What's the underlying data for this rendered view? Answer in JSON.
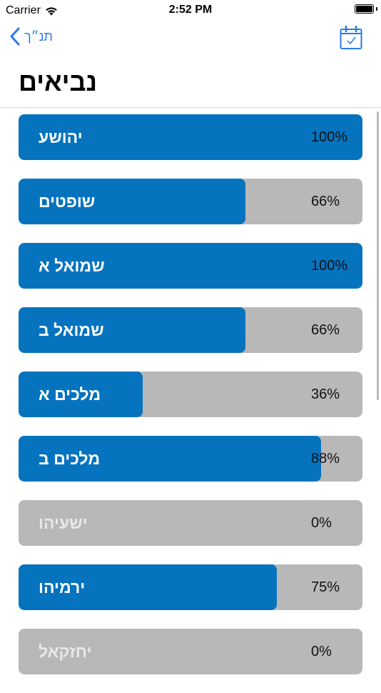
{
  "status": {
    "carrier": "Carrier",
    "time": "2:52 PM"
  },
  "nav": {
    "back_label": "תנ״ך",
    "back_icon": "chevron-left-icon",
    "right_icon": "calendar-check-icon"
  },
  "title": "נביאים",
  "accent_color": "#0673be",
  "track_color": "#b8b8b8",
  "books": [
    {
      "name": "יהושע",
      "percent_label": "100%",
      "progress": 1.0
    },
    {
      "name": "שופטים",
      "percent_label": "66%",
      "progress": 0.66
    },
    {
      "name": "שמואל א",
      "percent_label": "100%",
      "progress": 1.0
    },
    {
      "name": "שמואל ב",
      "percent_label": "66%",
      "progress": 0.66
    },
    {
      "name": "מלכים א",
      "percent_label": "36%",
      "progress": 0.36
    },
    {
      "name": "מלכים ב",
      "percent_label": "88%",
      "progress": 0.88
    },
    {
      "name": "ישעיהו",
      "percent_label": "0%",
      "progress": 0.0
    },
    {
      "name": "ירמיהו",
      "percent_label": "75%",
      "progress": 0.75
    },
    {
      "name": "יחזקאל",
      "percent_label": "0%",
      "progress": 0.0
    }
  ]
}
